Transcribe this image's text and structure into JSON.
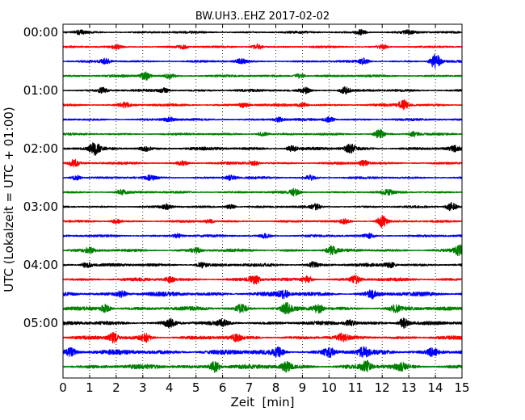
{
  "chart_data": {
    "type": "line",
    "title": "BW.UH3..EHZ 2017-02-02",
    "xlabel": "Zeit  [min]",
    "ylabel": "UTC (Lokalzeit = UTC + 01:00)",
    "xlim": [
      0,
      15
    ],
    "x_ticks": [
      "0",
      "1",
      "2",
      "3",
      "4",
      "5",
      "6",
      "7",
      "8",
      "9",
      "10",
      "11",
      "12",
      "13",
      "14",
      "15"
    ],
    "y_tick_labels": [
      "00:00",
      "01:00",
      "02:00",
      "03:00",
      "04:00",
      "05:00"
    ],
    "grid": "vertical-dotted",
    "traces_per_hour": 4,
    "trace_interval_min": 15,
    "series_colors": [
      "#000000",
      "#ff0000",
      "#0000ff",
      "#008000"
    ],
    "traces": [
      {
        "start": "00:00",
        "color": "#000000",
        "noise": 0.3,
        "events": [
          [
            0.6,
            0.6
          ],
          [
            11.2,
            0.7
          ],
          [
            13.0,
            0.5
          ]
        ]
      },
      {
        "start": "00:15",
        "color": "#ff0000",
        "noise": 0.25,
        "events": [
          [
            2.0,
            0.6
          ],
          [
            4.5,
            0.5
          ],
          [
            7.3,
            0.8
          ],
          [
            12.0,
            0.6
          ]
        ]
      },
      {
        "start": "00:30",
        "color": "#0000ff",
        "noise": 0.28,
        "events": [
          [
            1.6,
            0.7
          ],
          [
            6.7,
            0.6
          ],
          [
            11.3,
            0.8
          ],
          [
            14.0,
            2.2
          ]
        ]
      },
      {
        "start": "00:45",
        "color": "#008000",
        "noise": 0.3,
        "events": [
          [
            3.1,
            1.2
          ],
          [
            4.0,
            0.6
          ],
          [
            8.9,
            0.7
          ]
        ]
      },
      {
        "start": "01:00",
        "color": "#000000",
        "noise": 0.33,
        "events": [
          [
            1.5,
            0.7
          ],
          [
            3.8,
            0.6
          ],
          [
            9.1,
            0.8
          ],
          [
            10.6,
            0.9
          ]
        ]
      },
      {
        "start": "01:15",
        "color": "#ff0000",
        "noise": 0.32,
        "events": [
          [
            2.3,
            0.7
          ],
          [
            6.8,
            0.7
          ],
          [
            9.0,
            0.6
          ],
          [
            12.8,
            1.4
          ]
        ]
      },
      {
        "start": "01:30",
        "color": "#0000ff",
        "noise": 0.3,
        "events": [
          [
            4.0,
            0.6
          ],
          [
            8.1,
            0.6
          ],
          [
            10.0,
            0.8
          ]
        ]
      },
      {
        "start": "01:45",
        "color": "#008000",
        "noise": 0.28,
        "events": [
          [
            7.5,
            0.6
          ],
          [
            11.9,
            1.3
          ],
          [
            13.2,
            0.7
          ]
        ]
      },
      {
        "start": "02:00",
        "color": "#000000",
        "noise": 0.4,
        "events": [
          [
            1.2,
            1.6
          ],
          [
            3.1,
            0.6
          ],
          [
            8.6,
            0.8
          ],
          [
            10.8,
            1.1
          ],
          [
            14.7,
            0.6
          ]
        ]
      },
      {
        "start": "02:15",
        "color": "#ff0000",
        "noise": 0.32,
        "events": [
          [
            0.4,
            1.0
          ],
          [
            4.5,
            0.6
          ],
          [
            7.2,
            0.6
          ],
          [
            11.3,
            0.7
          ]
        ]
      },
      {
        "start": "02:30",
        "color": "#0000ff",
        "noise": 0.3,
        "events": [
          [
            0.5,
            0.7
          ],
          [
            3.3,
            0.6
          ],
          [
            6.3,
            0.7
          ],
          [
            9.3,
            0.6
          ]
        ]
      },
      {
        "start": "02:45",
        "color": "#008000",
        "noise": 0.3,
        "events": [
          [
            2.2,
            0.6
          ],
          [
            8.7,
            0.9
          ],
          [
            12.2,
            0.6
          ]
        ]
      },
      {
        "start": "03:00",
        "color": "#000000",
        "noise": 0.28,
        "events": [
          [
            3.9,
            0.6
          ],
          [
            6.3,
            0.6
          ],
          [
            9.5,
            0.7
          ],
          [
            14.6,
            1.3
          ]
        ]
      },
      {
        "start": "03:15",
        "color": "#ff0000",
        "noise": 0.28,
        "events": [
          [
            2.0,
            0.6
          ],
          [
            5.5,
            0.5
          ],
          [
            10.6,
            0.6
          ],
          [
            12.0,
            1.7
          ]
        ]
      },
      {
        "start": "03:30",
        "color": "#0000ff",
        "noise": 0.3,
        "events": [
          [
            4.3,
            0.6
          ],
          [
            7.6,
            0.6
          ],
          [
            11.5,
            0.6
          ]
        ]
      },
      {
        "start": "03:45",
        "color": "#008000",
        "noise": 0.38,
        "events": [
          [
            1.0,
            0.7
          ],
          [
            5.0,
            0.7
          ],
          [
            10.1,
            1.0
          ],
          [
            14.9,
            1.5
          ]
        ]
      },
      {
        "start": "04:00",
        "color": "#000000",
        "noise": 0.4,
        "events": [
          [
            0.9,
            0.8
          ],
          [
            5.2,
            0.7
          ],
          [
            9.4,
            0.8
          ],
          [
            12.3,
            0.7
          ]
        ]
      },
      {
        "start": "04:15",
        "color": "#ff0000",
        "noise": 0.42,
        "events": [
          [
            4.0,
            0.7
          ],
          [
            7.2,
            1.3
          ],
          [
            9.2,
            0.9
          ],
          [
            11.0,
            1.0
          ]
        ]
      },
      {
        "start": "04:30",
        "color": "#0000ff",
        "noise": 0.55,
        "events": [
          [
            2.2,
            0.8
          ],
          [
            8.3,
            1.0
          ],
          [
            11.6,
            0.9
          ]
        ]
      },
      {
        "start": "04:45",
        "color": "#008000",
        "noise": 0.5,
        "events": [
          [
            1.6,
            1.0
          ],
          [
            6.7,
            1.1
          ],
          [
            8.4,
            1.3
          ],
          [
            9.6,
            1.1
          ],
          [
            12.5,
            0.8
          ]
        ]
      },
      {
        "start": "05:00",
        "color": "#000000",
        "noise": 0.48,
        "events": [
          [
            4.0,
            1.1
          ],
          [
            6.0,
            0.8
          ],
          [
            10.8,
            0.8
          ],
          [
            12.8,
            1.4
          ]
        ]
      },
      {
        "start": "05:15",
        "color": "#ff0000",
        "noise": 0.48,
        "events": [
          [
            1.9,
            1.3
          ],
          [
            3.1,
            1.1
          ],
          [
            6.5,
            0.8
          ],
          [
            10.5,
            0.9
          ]
        ]
      },
      {
        "start": "05:30",
        "color": "#0000ff",
        "noise": 0.62,
        "events": [
          [
            0.3,
            1.0
          ],
          [
            8.1,
            1.1
          ],
          [
            10.0,
            1.1
          ],
          [
            11.3,
            1.3
          ],
          [
            13.9,
            1.0
          ]
        ]
      },
      {
        "start": "05:45",
        "color": "#008000",
        "noise": 0.58,
        "events": [
          [
            5.7,
            1.5
          ],
          [
            8.4,
            1.2
          ],
          [
            11.4,
            1.4
          ],
          [
            12.7,
            0.9
          ]
        ]
      }
    ]
  }
}
